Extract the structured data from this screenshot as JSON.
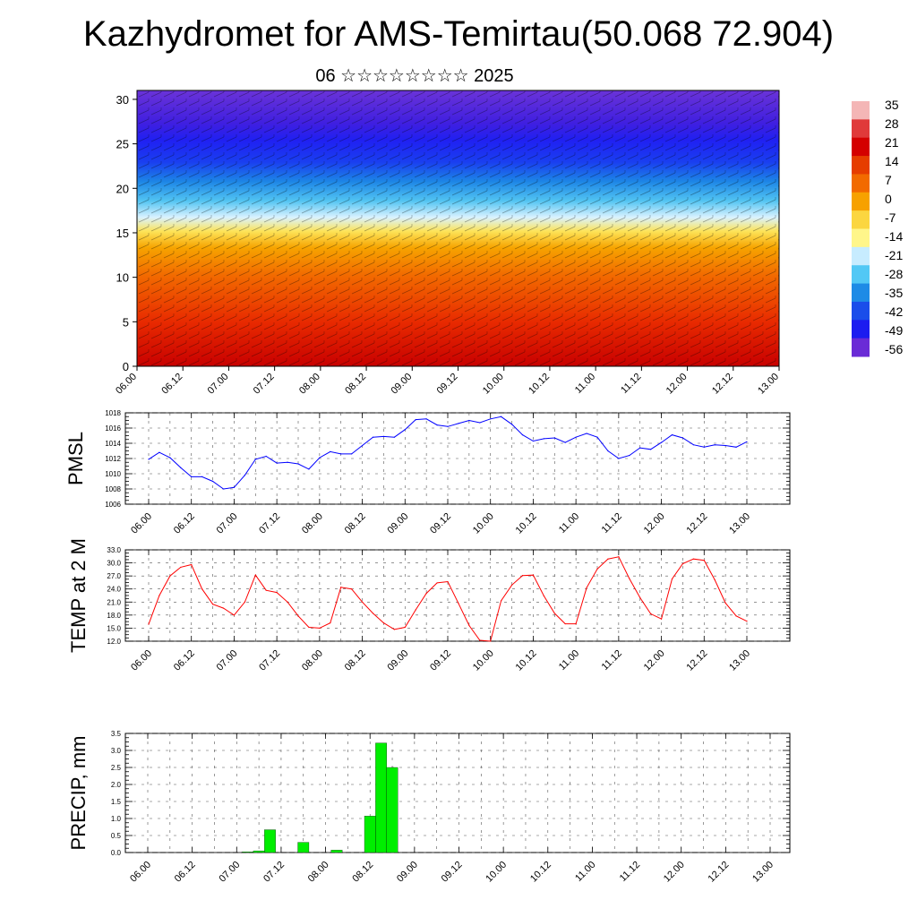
{
  "title": "Kazhydromet for AMS-Temirtau(50.068 72.904)",
  "subtitle": "06 ☆☆☆☆☆☆☆☆ 2025",
  "colorbar": {
    "labels": [
      "35",
      "28",
      "21",
      "14",
      "7",
      "0",
      "-7",
      "-14",
      "-21",
      "-28",
      "-35",
      "-42",
      "-49",
      "-56"
    ],
    "colors": [
      "#f4b6b6",
      "#e03a3a",
      "#d40000",
      "#e63d00",
      "#f26a00",
      "#f7a100",
      "#fbd640",
      "#fff68a",
      "#c7ecff",
      "#52c8f5",
      "#1e8be6",
      "#1a4dea",
      "#1c1cf0",
      "#6a2bd6"
    ]
  },
  "chart_data": [
    {
      "type": "heatmap",
      "name": "cross-section",
      "x_ticks": [
        "06.00",
        "06.12",
        "07.00",
        "07.12",
        "08.00",
        "08.12",
        "09.00",
        "09.12",
        "10.00",
        "10.12",
        "11.00",
        "11.12",
        "12.00",
        "12.12",
        "13.00"
      ],
      "y_ticks": [
        "0",
        "5",
        "10",
        "15",
        "20",
        "25",
        "30"
      ],
      "ylim": [
        0,
        31
      ]
    },
    {
      "type": "line",
      "ylabel": "PMSL",
      "ylim": [
        1006,
        1018
      ],
      "y_ticks": [
        "1018",
        "1016",
        "1014",
        "1012",
        "1010",
        "1008",
        "1006"
      ],
      "x_ticks": [
        "06.00",
        "06.12",
        "07.00",
        "07.12",
        "08.00",
        "08.12",
        "09.00",
        "09.12",
        "10.00",
        "10.12",
        "11.00",
        "11.12",
        "12.00",
        "12.12",
        "13.00"
      ],
      "color": "#0000ff",
      "values": [
        1011.9,
        1012.8,
        1012.1,
        1010.8,
        1009.6,
        1009.6,
        1009.0,
        1008.0,
        1008.2,
        1009.8,
        1011.9,
        1012.3,
        1011.4,
        1011.5,
        1011.3,
        1010.6,
        1012.1,
        1012.9,
        1012.6,
        1012.6,
        1013.7,
        1014.8,
        1014.9,
        1014.8,
        1015.8,
        1017.1,
        1017.2,
        1016.4,
        1016.2,
        1016.6,
        1017.0,
        1016.7,
        1017.2,
        1017.5,
        1016.5,
        1015.1,
        1014.3,
        1014.6,
        1014.7,
        1014.1,
        1014.8,
        1015.3,
        1014.8,
        1013.0,
        1012.0,
        1012.4,
        1013.4,
        1013.2,
        1014.1,
        1015.1,
        1014.7,
        1013.8,
        1013.5,
        1013.8,
        1013.7,
        1013.5,
        1014.2
      ]
    },
    {
      "type": "line",
      "ylabel": "TEMP at 2 M",
      "ylim": [
        12,
        33
      ],
      "y_ticks": [
        "33.0",
        "30.0",
        "27.0",
        "24.0",
        "21.0",
        "18.0",
        "15.0",
        "12.0"
      ],
      "x_ticks": [
        "06.00",
        "06.12",
        "07.00",
        "07.12",
        "08.00",
        "08.12",
        "09.00",
        "09.12",
        "10.00",
        "10.12",
        "11.00",
        "11.12",
        "12.00",
        "12.12",
        "13.00"
      ],
      "color": "#ff0000",
      "values": [
        15.9,
        22.5,
        27.0,
        29.0,
        29.6,
        24.0,
        20.5,
        19.6,
        18.0,
        21.0,
        27.2,
        23.7,
        23.2,
        21.0,
        17.8,
        15.2,
        15.0,
        16.2,
        24.4,
        24.0,
        21.0,
        18.4,
        16.2,
        14.7,
        15.2,
        19.2,
        23.0,
        25.4,
        25.7,
        20.7,
        15.6,
        12.2,
        12.0,
        21.3,
        24.9,
        27.1,
        27.2,
        22.4,
        18.4,
        16.0,
        16.0,
        24.3,
        28.6,
        30.9,
        31.4,
        26.4,
        22.0,
        18.3,
        17.1,
        26.3,
        29.8,
        30.9,
        30.6,
        26.1,
        20.8,
        17.8,
        16.6
      ]
    },
    {
      "type": "bar",
      "ylabel": "PRECIP, mm",
      "ylim": [
        0,
        3.5
      ],
      "y_ticks": [
        "3.5",
        "3.0",
        "2.5",
        "2.0",
        "1.5",
        "1.0",
        "0.5",
        "0.0"
      ],
      "x_ticks": [
        "06.00",
        "06.12",
        "07.00",
        "07.12",
        "08.00",
        "08.12",
        "09.00",
        "09.12",
        "10.00",
        "10.12",
        "11.00",
        "11.12",
        "12.00",
        "12.12",
        "13.00"
      ],
      "color": "#00ee00",
      "values": [
        0,
        0,
        0,
        0,
        0,
        0,
        0,
        0,
        0,
        0.02,
        0.05,
        0.67,
        0,
        0,
        0.3,
        0,
        0,
        0.07,
        0,
        0,
        1.07,
        3.22,
        2.5,
        0,
        0,
        0,
        0,
        0,
        0,
        0,
        0,
        0,
        0,
        0,
        0,
        0,
        0,
        0,
        0,
        0,
        0,
        0,
        0,
        0,
        0,
        0,
        0,
        0,
        0,
        0,
        0,
        0,
        0,
        0,
        0,
        0,
        0
      ]
    }
  ]
}
